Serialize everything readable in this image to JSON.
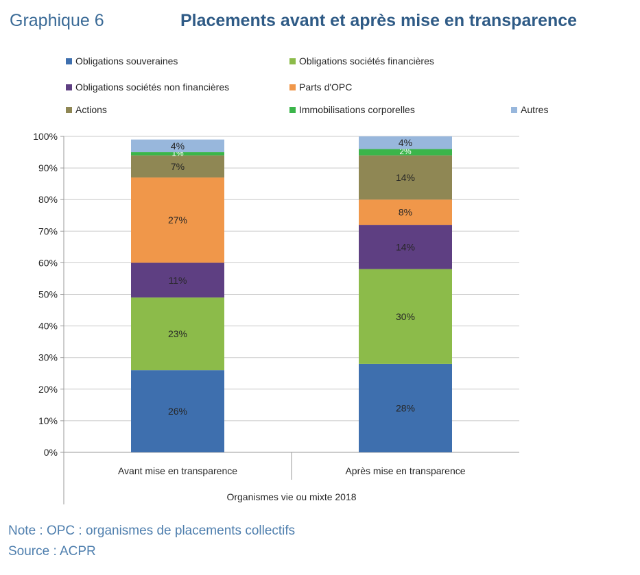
{
  "header": {
    "label": "Graphique 6",
    "title": "Placements avant et après mise en transparence"
  },
  "chart_data": {
    "type": "bar",
    "stacked": true,
    "categories": [
      "Avant mise en transparence",
      "Après mise en transparence"
    ],
    "group_label": "Organismes vie ou mixte 2018",
    "series": [
      {
        "name": "Obligations souveraines",
        "color": "#3e6fae",
        "values": [
          26,
          28
        ],
        "labels": [
          "26%",
          "28%"
        ]
      },
      {
        "name": "Obligations sociétés financières",
        "color": "#8cbb4a",
        "values": [
          23,
          30
        ],
        "labels": [
          "23%",
          "30%"
        ]
      },
      {
        "name": "Obligations sociétés non financières",
        "color": "#5e3f82",
        "values": [
          11,
          14
        ],
        "labels": [
          "11%",
          "14%"
        ]
      },
      {
        "name": "Parts d'OPC",
        "color": "#f0974a",
        "values": [
          27,
          8
        ],
        "labels": [
          "27%",
          "8%"
        ]
      },
      {
        "name": "Actions",
        "color": "#8f8754",
        "values": [
          7,
          14
        ],
        "labels": [
          "7%",
          "14%"
        ]
      },
      {
        "name": "Immobilisations corporelles",
        "color": "#3bb54a",
        "values": [
          1,
          2
        ],
        "labels": [
          "1%",
          "2%"
        ]
      },
      {
        "name": "Autres",
        "color": "#98b7dc",
        "values": [
          4,
          4
        ],
        "labels": [
          "4%",
          "4%"
        ]
      }
    ],
    "ylim": [
      0,
      100
    ],
    "yticks": [
      "0%",
      "10%",
      "20%",
      "30%",
      "40%",
      "50%",
      "60%",
      "70%",
      "80%",
      "90%",
      "100%"
    ],
    "grid": true,
    "legend_position": "top"
  },
  "footer": {
    "note": "Note : OPC : organismes de placements collectifs",
    "source": "Source : ACPR"
  }
}
